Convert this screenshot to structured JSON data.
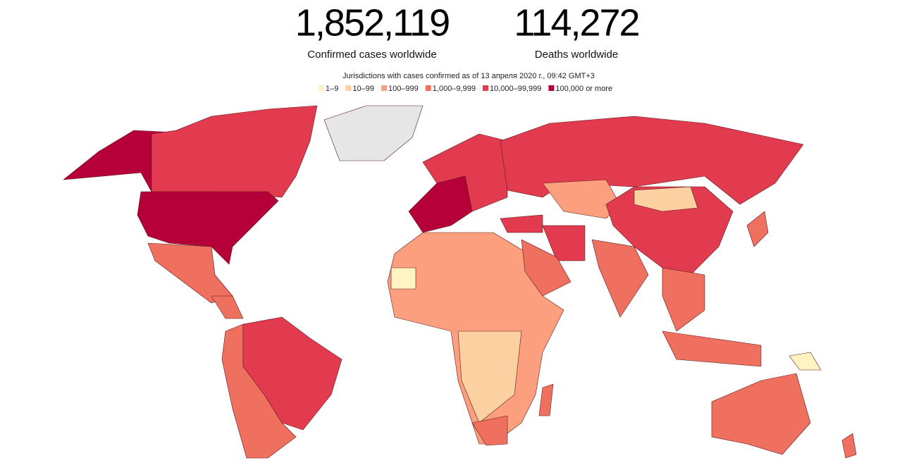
{
  "header": {
    "stats": [
      {
        "value": "1,852,119",
        "label": "Confirmed cases worldwide"
      },
      {
        "value": "114,272",
        "label": "Deaths worldwide"
      }
    ],
    "subtitle": "Jurisdictions with cases confirmed as of 13 апреля 2020 г., 09:42 GMT+3"
  },
  "legend": [
    {
      "label": "1–9",
      "color": "#fff3c4"
    },
    {
      "label": "10–99",
      "color": "#fdd0a2"
    },
    {
      "label": "100–999",
      "color": "#fc9f7f"
    },
    {
      "label": "1,000–9,999",
      "color": "#f07060"
    },
    {
      "label": "10,000–99,999",
      "color": "#e23b50"
    },
    {
      "label": "100,000 or more",
      "color": "#b5003a"
    }
  ]
}
